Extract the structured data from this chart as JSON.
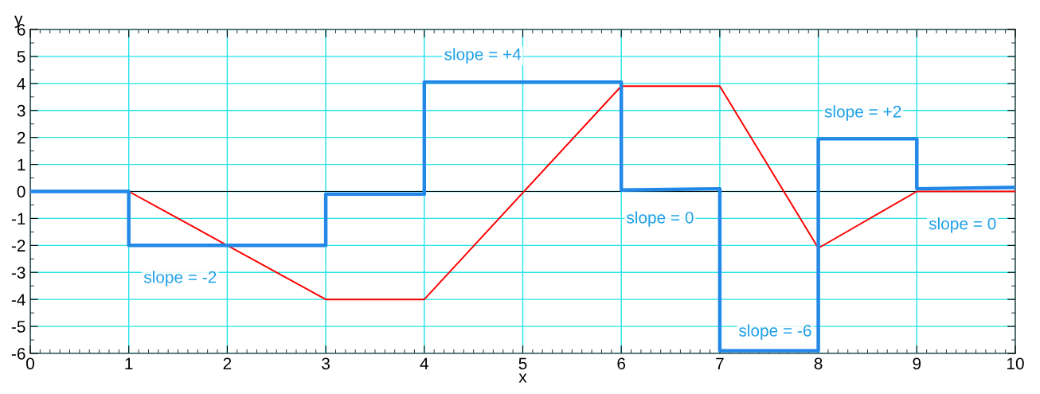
{
  "chart_data": {
    "type": "line",
    "xlabel": "x",
    "ylabel": "y",
    "xlim": [
      0,
      10
    ],
    "ylim": [
      -6,
      6
    ],
    "xticks": [
      0,
      1,
      2,
      3,
      4,
      5,
      6,
      7,
      8,
      9,
      10
    ],
    "yticks": [
      -6,
      -5,
      -4,
      -3,
      -2,
      -1,
      0,
      1,
      2,
      3,
      4,
      5,
      6
    ],
    "grid": true,
    "marker": "none",
    "line_style": "solid",
    "series": [
      {
        "color": "#ff0000",
        "x": [
          0,
          1,
          3,
          4,
          6,
          7,
          8,
          9,
          10
        ],
        "values": [
          0,
          0,
          -4,
          -4,
          3.9,
          3.9,
          -2.1,
          0,
          0
        ]
      },
      {
        "color": "#2288e8",
        "x": [
          0,
          1,
          1,
          3,
          3,
          4,
          4,
          6,
          6,
          7,
          7,
          8,
          8,
          9,
          9,
          10
        ],
        "values": [
          0,
          0,
          -2,
          -2,
          -0.1,
          -0.1,
          4.05,
          4.05,
          0.05,
          0.1,
          -5.9,
          -5.9,
          1.95,
          1.95,
          0.1,
          0.15
        ]
      }
    ],
    "ref_lines": [
      {
        "axis": "y",
        "value": 0,
        "color": "#000000"
      }
    ],
    "annotations": [
      "slope = -2",
      "slope = +4",
      "slope = 0",
      "slope = -6",
      "slope = +2",
      "slope = 0"
    ]
  }
}
